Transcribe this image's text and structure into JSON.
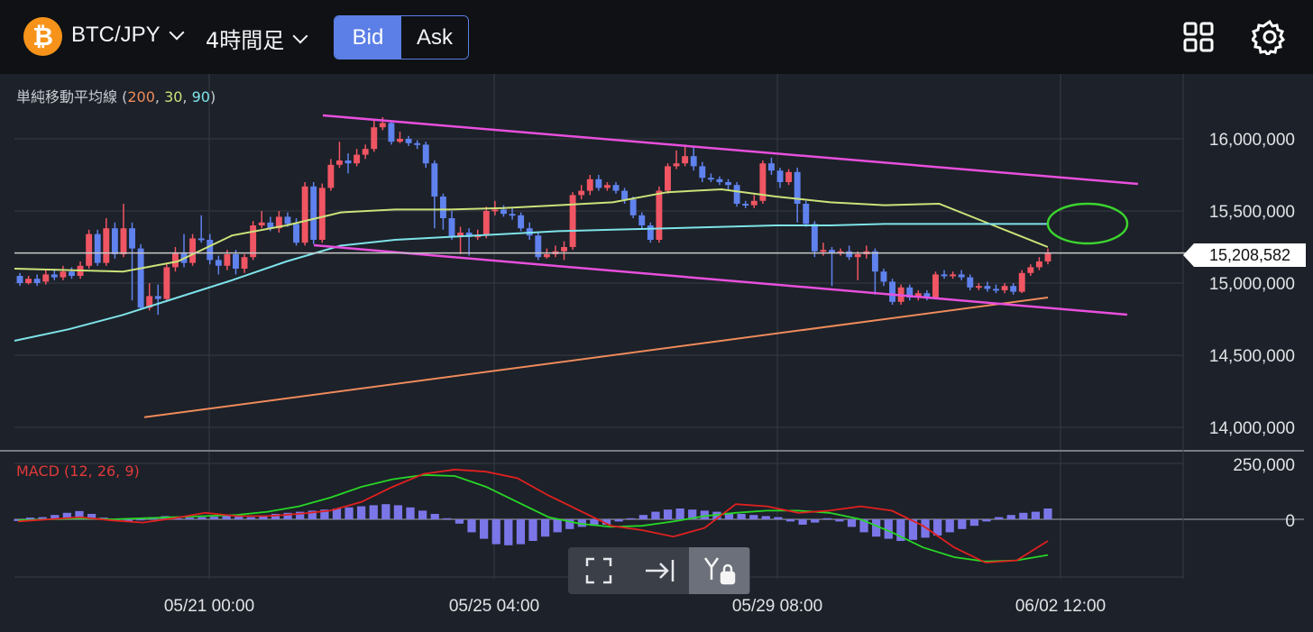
{
  "header": {
    "coin_symbol": "₿",
    "pair": "BTC/JPY",
    "period": "4時間足",
    "bid_label": "Bid",
    "ask_label": "Ask",
    "active_side": "Bid",
    "icons": [
      "grid-icon",
      "gear-icon"
    ]
  },
  "indicator": {
    "name": "単純移動平均線",
    "periods": [
      "200",
      "30",
      "90"
    ],
    "open": " (",
    "sep": ", ",
    "close": ")"
  },
  "macd": {
    "label": "MACD (12, 26, 9)"
  },
  "current_price": "15,208,582",
  "colors": {
    "up": "#f05563",
    "down": "#5f82ee",
    "sma200": "#ee8b5b",
    "sma30": "#cce27a",
    "sma90": "#7ee3e9",
    "trendline": "#e84fdd",
    "ellipse": "#3bd42e",
    "macd_line": "#e02020",
    "signal_line": "#27d627",
    "histogram": "#7b76e8",
    "accent": "#5b7fe6"
  },
  "chart_data": {
    "type": "candlestick",
    "price_ticks": [
      "16,000,000",
      "15,500,000",
      "15,000,000",
      "14,500,000",
      "14,000,000"
    ],
    "macd_ticks": [
      "250,000",
      "0"
    ],
    "x_ticks": [
      "05/21 00:00",
      "05/25 04:00",
      "05/29 08:00",
      "06/02 12:00"
    ],
    "ylim": [
      13800000,
      16300000
    ],
    "candles": [
      [
        15050000,
        15000000,
        15070000,
        14980000
      ],
      [
        15000000,
        15030000,
        15050000,
        14990000
      ],
      [
        15030000,
        15000000,
        15060000,
        14980000
      ],
      [
        15010000,
        15060000,
        15090000,
        14990000
      ],
      [
        15060000,
        15040000,
        15100000,
        15020000
      ],
      [
        15040000,
        15080000,
        15120000,
        15020000
      ],
      [
        15080000,
        15050000,
        15110000,
        15030000
      ],
      [
        15050000,
        15120000,
        15150000,
        15030000
      ],
      [
        15120000,
        15340000,
        15370000,
        15100000
      ],
      [
        15340000,
        15140000,
        15370000,
        15120000
      ],
      [
        15140000,
        15380000,
        15450000,
        15120000
      ],
      [
        15380000,
        15200000,
        15420000,
        15170000
      ],
      [
        15200000,
        15380000,
        15550000,
        15180000
      ],
      [
        15380000,
        15240000,
        15420000,
        14880000
      ],
      [
        15240000,
        14830000,
        15270000,
        14820000
      ],
      [
        14830000,
        14910000,
        15000000,
        14810000
      ],
      [
        14910000,
        14890000,
        14990000,
        14780000
      ],
      [
        14890000,
        15110000,
        15130000,
        14870000
      ],
      [
        15110000,
        15210000,
        15250000,
        15080000
      ],
      [
        15210000,
        15140000,
        15340000,
        15110000
      ],
      [
        15140000,
        15310000,
        15340000,
        15120000
      ],
      [
        15310000,
        15300000,
        15470000,
        15280000
      ],
      [
        15300000,
        15160000,
        15340000,
        15130000
      ],
      [
        15160000,
        15120000,
        15190000,
        15060000
      ],
      [
        15120000,
        15200000,
        15230000,
        15090000
      ],
      [
        15200000,
        15100000,
        15230000,
        15060000
      ],
      [
        15100000,
        15180000,
        15200000,
        15070000
      ],
      [
        15180000,
        15400000,
        15430000,
        15160000
      ],
      [
        15400000,
        15420000,
        15500000,
        15380000
      ],
      [
        15420000,
        15380000,
        15460000,
        15360000
      ],
      [
        15380000,
        15460000,
        15500000,
        15350000
      ],
      [
        15460000,
        15410000,
        15490000,
        15390000
      ],
      [
        15410000,
        15280000,
        15450000,
        15260000
      ],
      [
        15280000,
        15670000,
        15700000,
        15260000
      ],
      [
        15670000,
        15300000,
        15700000,
        15270000
      ],
      [
        15300000,
        15660000,
        15690000,
        15280000
      ],
      [
        15660000,
        15820000,
        15860000,
        15640000
      ],
      [
        15820000,
        15850000,
        15980000,
        15800000
      ],
      [
        15850000,
        15830000,
        15900000,
        15760000
      ],
      [
        15830000,
        15890000,
        15930000,
        15810000
      ],
      [
        15890000,
        15930000,
        15960000,
        15860000
      ],
      [
        15930000,
        16080000,
        16140000,
        15910000
      ],
      [
        16080000,
        16110000,
        16150000,
        16060000
      ],
      [
        16110000,
        15980000,
        16130000,
        15960000
      ],
      [
        15980000,
        16000000,
        16050000,
        15970000
      ],
      [
        16000000,
        15970000,
        16020000,
        15950000
      ],
      [
        15970000,
        15960000,
        15990000,
        15930000
      ],
      [
        15960000,
        15830000,
        15980000,
        15800000
      ],
      [
        15830000,
        15600000,
        15850000,
        15380000
      ],
      [
        15600000,
        15450000,
        15620000,
        15370000
      ],
      [
        15450000,
        15320000,
        15500000,
        15300000
      ],
      [
        15320000,
        15350000,
        15390000,
        15200000
      ],
      [
        15350000,
        15320000,
        15380000,
        15190000
      ],
      [
        15320000,
        15330000,
        15370000,
        15300000
      ],
      [
        15330000,
        15500000,
        15530000,
        15310000
      ],
      [
        15500000,
        15510000,
        15570000,
        15470000
      ],
      [
        15510000,
        15480000,
        15540000,
        15460000
      ],
      [
        15480000,
        15470000,
        15520000,
        15440000
      ],
      [
        15470000,
        15380000,
        15490000,
        15360000
      ],
      [
        15380000,
        15330000,
        15420000,
        15300000
      ],
      [
        15330000,
        15180000,
        15350000,
        15160000
      ],
      [
        15180000,
        15200000,
        15240000,
        15170000
      ],
      [
        15200000,
        15220000,
        15260000,
        15180000
      ],
      [
        15220000,
        15250000,
        15290000,
        15160000
      ],
      [
        15250000,
        15610000,
        15630000,
        15230000
      ],
      [
        15610000,
        15640000,
        15680000,
        15580000
      ],
      [
        15640000,
        15720000,
        15750000,
        15610000
      ],
      [
        15720000,
        15660000,
        15750000,
        15640000
      ],
      [
        15660000,
        15680000,
        15700000,
        15640000
      ],
      [
        15680000,
        15640000,
        15700000,
        15620000
      ],
      [
        15640000,
        15580000,
        15660000,
        15550000
      ],
      [
        15580000,
        15470000,
        15600000,
        15450000
      ],
      [
        15470000,
        15400000,
        15490000,
        15370000
      ],
      [
        15400000,
        15300000,
        15420000,
        15280000
      ],
      [
        15300000,
        15640000,
        15670000,
        15280000
      ],
      [
        15640000,
        15810000,
        15830000,
        15620000
      ],
      [
        15810000,
        15830000,
        15920000,
        15790000
      ],
      [
        15830000,
        15880000,
        15960000,
        15810000
      ],
      [
        15880000,
        15810000,
        15950000,
        15780000
      ],
      [
        15810000,
        15730000,
        15840000,
        15700000
      ],
      [
        15730000,
        15720000,
        15760000,
        15700000
      ],
      [
        15720000,
        15700000,
        15740000,
        15680000
      ],
      [
        15700000,
        15680000,
        15720000,
        15650000
      ],
      [
        15680000,
        15550000,
        15700000,
        15530000
      ],
      [
        15550000,
        15540000,
        15570000,
        15520000
      ],
      [
        15540000,
        15570000,
        15610000,
        15520000
      ],
      [
        15570000,
        15830000,
        15850000,
        15550000
      ],
      [
        15830000,
        15780000,
        15870000,
        15750000
      ],
      [
        15780000,
        15700000,
        15800000,
        15660000
      ],
      [
        15700000,
        15770000,
        15790000,
        15680000
      ],
      [
        15770000,
        15550000,
        15800000,
        15420000
      ],
      [
        15550000,
        15410000,
        15570000,
        15390000
      ],
      [
        15410000,
        15220000,
        15430000,
        15180000
      ],
      [
        15220000,
        15230000,
        15280000,
        15190000
      ],
      [
        15230000,
        15210000,
        15250000,
        14980000
      ],
      [
        15210000,
        15220000,
        15240000,
        15190000
      ],
      [
        15220000,
        15180000,
        15260000,
        15160000
      ],
      [
        15180000,
        15200000,
        15220000,
        15020000
      ],
      [
        15200000,
        15220000,
        15260000,
        15170000
      ],
      [
        15220000,
        15080000,
        15240000,
        14920000
      ],
      [
        15080000,
        15010000,
        15100000,
        14980000
      ],
      [
        15010000,
        14870000,
        15030000,
        14850000
      ],
      [
        14870000,
        14970000,
        14990000,
        14850000
      ],
      [
        14970000,
        14900000,
        14990000,
        14880000
      ],
      [
        14900000,
        14930000,
        14950000,
        14880000
      ],
      [
        14930000,
        14900000,
        14950000,
        14880000
      ],
      [
        14900000,
        15060000,
        15080000,
        14890000
      ],
      [
        15060000,
        15050000,
        15090000,
        15030000
      ],
      [
        15050000,
        15060000,
        15080000,
        15030000
      ],
      [
        15060000,
        15040000,
        15090000,
        15020000
      ],
      [
        15040000,
        14970000,
        15060000,
        14950000
      ],
      [
        14970000,
        14980000,
        15000000,
        14950000
      ],
      [
        14980000,
        14960000,
        15010000,
        14940000
      ],
      [
        14960000,
        14950000,
        14990000,
        14930000
      ],
      [
        14950000,
        14980000,
        15000000,
        14930000
      ],
      [
        14980000,
        14940000,
        15000000,
        14920000
      ],
      [
        14940000,
        15070000,
        15090000,
        14930000
      ],
      [
        15070000,
        15110000,
        15130000,
        15050000
      ],
      [
        15110000,
        15150000,
        15180000,
        15090000
      ],
      [
        15150000,
        15210000,
        15240000,
        15130000
      ]
    ],
    "series": [
      {
        "name": "200",
        "y0": 14070000,
        "y1": 14900000
      },
      {
        "name": "30",
        "values": [
          15100000,
          15090000,
          15080000,
          15150000,
          15330000,
          15400000,
          15490000,
          15510000,
          15510000,
          15520000,
          15540000,
          15560000,
          15630000,
          15650000,
          15600000,
          15560000,
          15540000,
          15550000,
          15400000,
          15250000
        ]
      },
      {
        "name": "90",
        "values": [
          14600000,
          14680000,
          14780000,
          14900000,
          15020000,
          15150000,
          15260000,
          15300000,
          15320000,
          15340000,
          15360000,
          15370000,
          15380000,
          15390000,
          15400000,
          15400000,
          15410000,
          15410000,
          15410000,
          15410000
        ]
      }
    ],
    "macd_hist": [
      -8000,
      8000,
      10000,
      20000,
      30000,
      38000,
      25000,
      8000,
      -5000,
      -10000,
      -5000,
      10000,
      15000,
      5000,
      8000,
      10000,
      12000,
      20000,
      15000,
      10000,
      15000,
      25000,
      30000,
      35000,
      40000,
      45000,
      50000,
      55000,
      60000,
      65000,
      70000,
      65000,
      55000,
      40000,
      25000,
      5000,
      -20000,
      -60000,
      -90000,
      -115000,
      -120000,
      -115000,
      -100000,
      -80000,
      -60000,
      -45000,
      -35000,
      -30000,
      -25000,
      -10000,
      5000,
      20000,
      35000,
      45000,
      50000,
      45000,
      40000,
      35000,
      30000,
      25000,
      20000,
      15000,
      10000,
      -10000,
      -25000,
      -15000,
      5000,
      -10000,
      -35000,
      -60000,
      -80000,
      -90000,
      -100000,
      -95000,
      -85000,
      -75000,
      -60000,
      -45000,
      -30000,
      -10000,
      10000,
      20000,
      30000,
      35000,
      50000
    ],
    "macd_line": [
      -10000,
      0,
      10000,
      -5000,
      -15000,
      5000,
      30000,
      15000,
      15000,
      25000,
      40000,
      80000,
      150000,
      210000,
      230000,
      220000,
      190000,
      110000,
      40000,
      -30000,
      -50000,
      -80000,
      -40000,
      70000,
      60000,
      30000,
      40000,
      60000,
      40000,
      -30000,
      -130000,
      -200000,
      -190000,
      -100000
    ],
    "signal_line": [
      -5000,
      0,
      5000,
      0,
      5000,
      10000,
      15000,
      20000,
      35000,
      60000,
      100000,
      150000,
      185000,
      205000,
      200000,
      150000,
      80000,
      10000,
      -20000,
      -35000,
      -30000,
      -10000,
      15000,
      30000,
      40000,
      40000,
      30000,
      0,
      -60000,
      -130000,
      -175000,
      -195000,
      -190000,
      -165000
    ]
  }
}
